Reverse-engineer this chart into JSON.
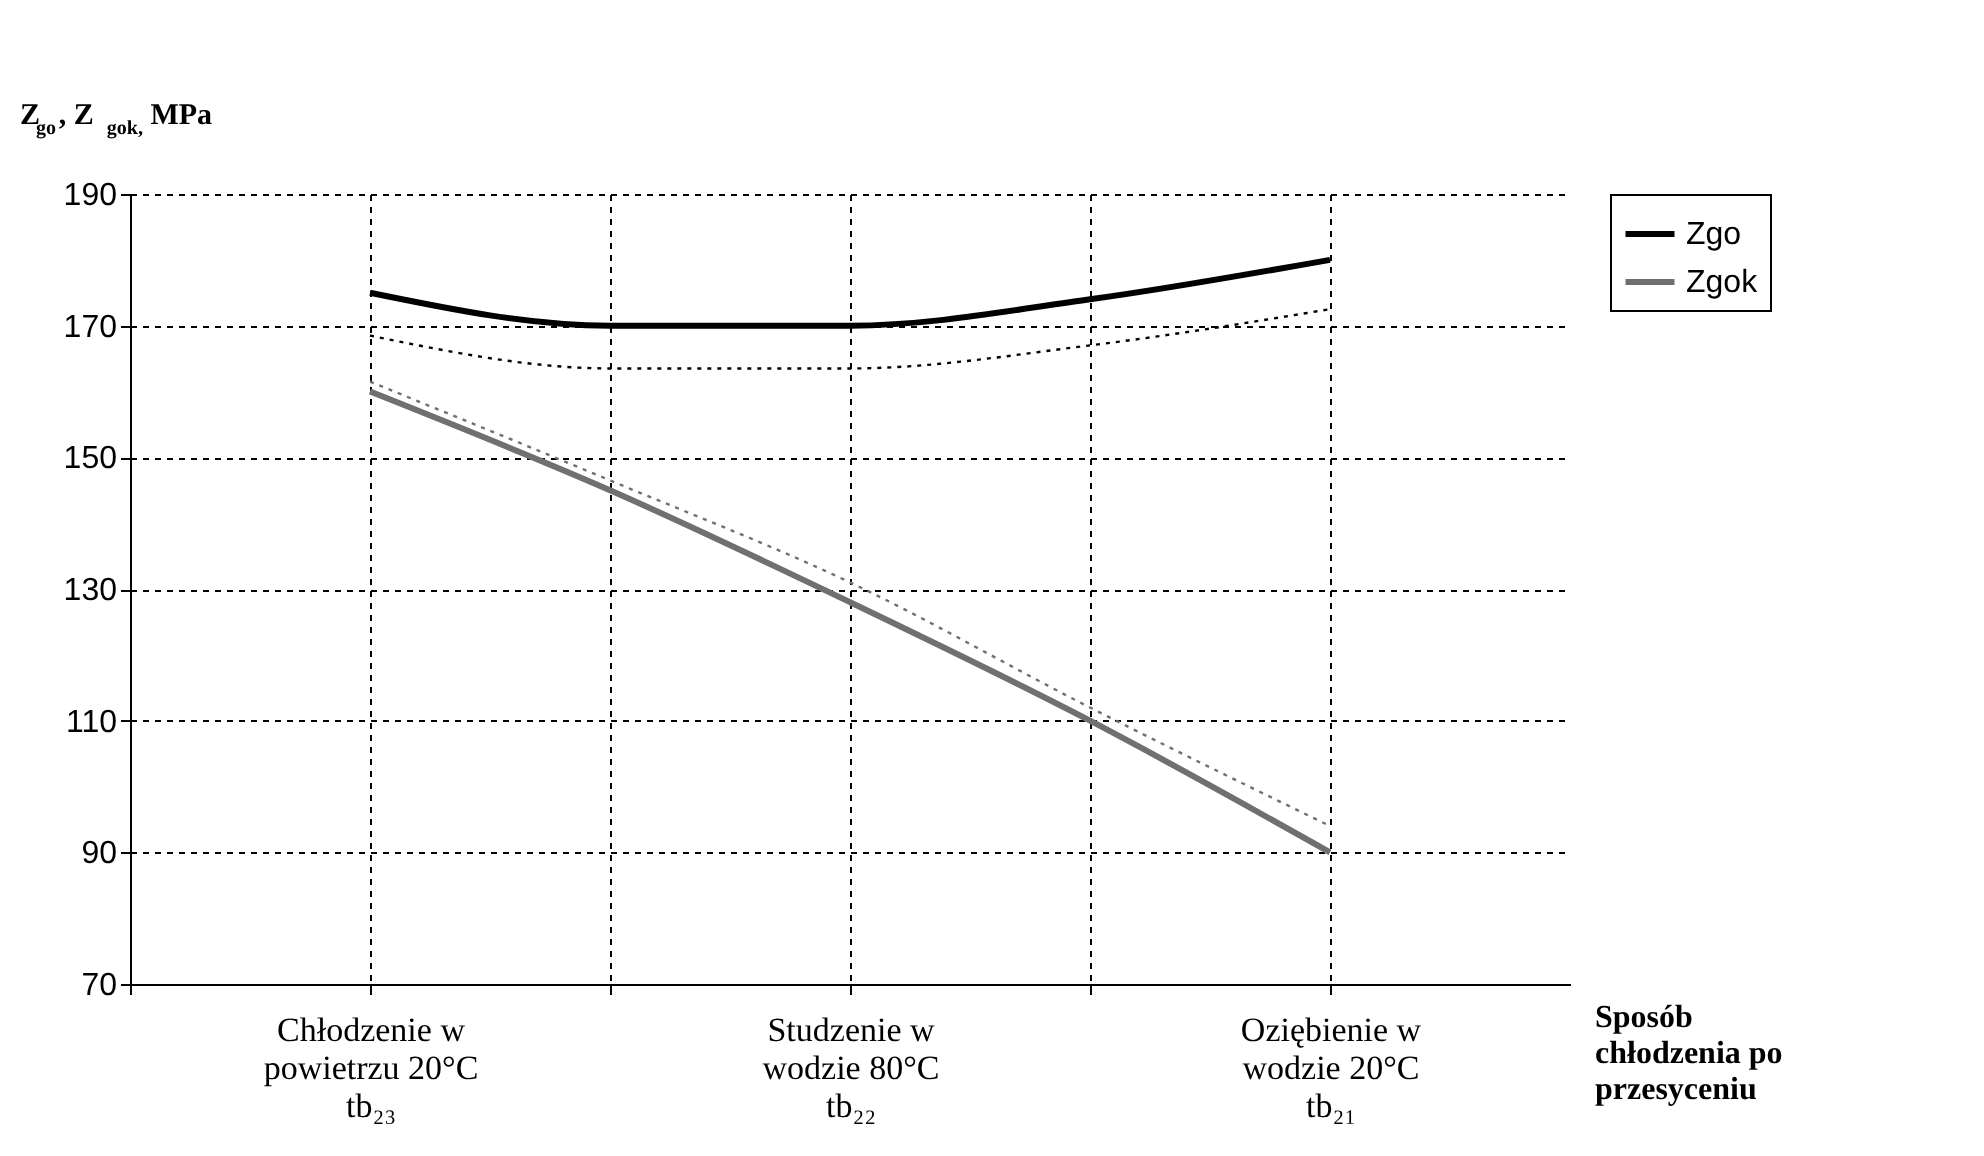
{
  "chart_data": {
    "type": "line",
    "ylabel": "Z$_{go}$, Z$_{gok,}$ MPa",
    "xlabel": "Sposób chłodzenia po przesyceniu",
    "categories": [
      "Chłodzenie w\npowietrzu 20°C\ntb₂₃",
      null,
      "Studzenie w\nwodzie 80°C\ntb₂₂",
      null,
      "Oziębienie w\nwodzie 20°C\ntb₂₁"
    ],
    "series": [
      {
        "name": "Zgo",
        "color": "#000000",
        "values": [
          175,
          170,
          170,
          174,
          180
        ]
      },
      {
        "name": "Zgok",
        "color": "#707070",
        "values": [
          160,
          145,
          128,
          110,
          90
        ]
      },
      {
        "type": "line",
        "color": "#000000",
        "line_style": "dotted",
        "values": [
          168.5,
          163.5,
          163.5,
          167,
          172.5
        ]
      },
      {
        "type": "line",
        "color": "#707070",
        "line_style": "dotted",
        "values": [
          161.5,
          146.5,
          131,
          112,
          94
        ]
      }
    ],
    "ylim": [
      70,
      190
    ],
    "yticks": [
      70,
      90,
      110,
      130,
      150,
      170,
      190
    ],
    "grid": true,
    "legend": "right",
    "line_style": "solid",
    "marker": "none"
  }
}
